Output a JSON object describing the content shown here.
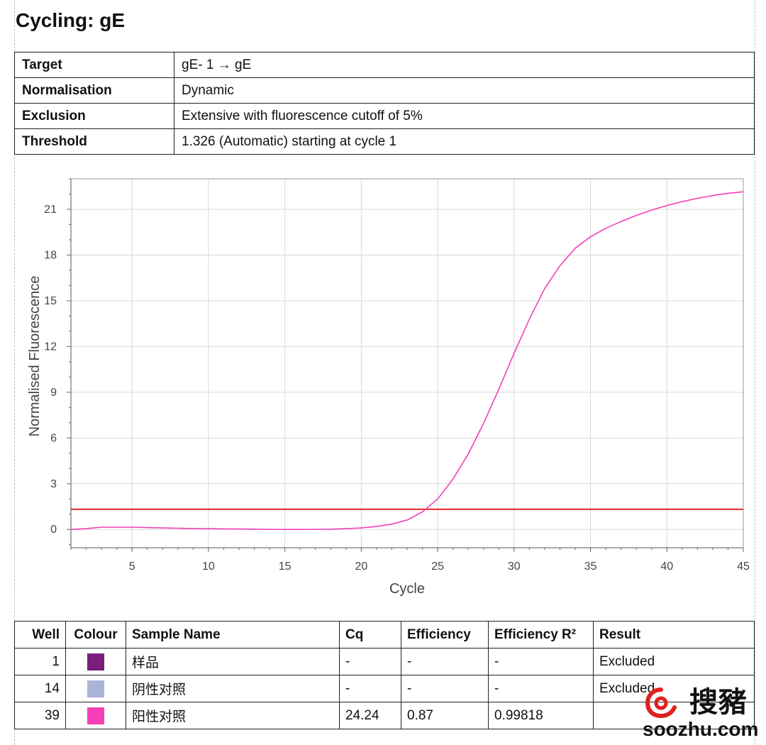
{
  "page": {
    "title": "Cycling: gE"
  },
  "info_table": [
    {
      "label": "Target",
      "value": "gE- 1 → gE"
    },
    {
      "label": "Normalisation",
      "value": "Dynamic"
    },
    {
      "label": "Exclusion",
      "value": "Extensive with fluorescence cutoff of 5%"
    },
    {
      "label": "Threshold",
      "value": "1.326 (Automatic) starting at cycle 1"
    }
  ],
  "chart_data": {
    "type": "line",
    "xlabel": "Cycle",
    "ylabel": "Normalised Fluorescence",
    "xlim": [
      1,
      45
    ],
    "ylim": [
      -1.2,
      23
    ],
    "xticks": [
      5,
      10,
      15,
      20,
      25,
      30,
      35,
      40,
      45
    ],
    "yticks": [
      0,
      3,
      6,
      9,
      12,
      15,
      18,
      21
    ],
    "grid": true,
    "threshold": {
      "value": 1.326,
      "color": "#e0201e"
    },
    "series": [
      {
        "color": "#f53fb6",
        "x": [
          1,
          2,
          3,
          4,
          5,
          6,
          7,
          8,
          9,
          10,
          11,
          12,
          13,
          14,
          15,
          16,
          17,
          18,
          19,
          20,
          21,
          22,
          23,
          24,
          25,
          26,
          27,
          28,
          29,
          30,
          31,
          32,
          33,
          34,
          35,
          36,
          37,
          38,
          39,
          40,
          41,
          42,
          43,
          44,
          45
        ],
        "y": [
          0.0,
          0.05,
          0.15,
          0.15,
          0.15,
          0.12,
          0.1,
          0.08,
          0.06,
          0.05,
          0.04,
          0.03,
          0.02,
          0.01,
          0.0,
          0.0,
          0.01,
          0.02,
          0.05,
          0.1,
          0.2,
          0.35,
          0.62,
          1.15,
          2.0,
          3.3,
          4.95,
          6.95,
          9.2,
          11.55,
          13.8,
          15.8,
          17.3,
          18.45,
          19.2,
          19.75,
          20.2,
          20.6,
          20.95,
          21.25,
          21.5,
          21.72,
          21.9,
          22.05,
          22.15
        ]
      }
    ]
  },
  "results_table": {
    "headers": {
      "well": "Well",
      "colour": "Colour",
      "sample_name": "Sample Name",
      "cq": "Cq",
      "efficiency": "Efficiency",
      "efficiency_r2": "Efficiency R²",
      "result": "Result"
    },
    "rows": [
      {
        "well": "1",
        "colour": "#7a1e7d",
        "sample_name": "样品",
        "cq": "-",
        "efficiency": "-",
        "efficiency_r2": "-",
        "result": "Excluded"
      },
      {
        "well": "14",
        "colour": "#aab4d6",
        "sample_name": "阴性对照",
        "cq": "-",
        "efficiency": "-",
        "efficiency_r2": "-",
        "result": "Excluded"
      },
      {
        "well": "39",
        "colour": "#f53fb6",
        "sample_name": "阳性对照",
        "cq": "24.24",
        "efficiency": "0.87",
        "efficiency_r2": "0.99818",
        "result": ""
      }
    ]
  },
  "watermark": {
    "text_cn": "搜豬",
    "url": "soozhu.com"
  }
}
